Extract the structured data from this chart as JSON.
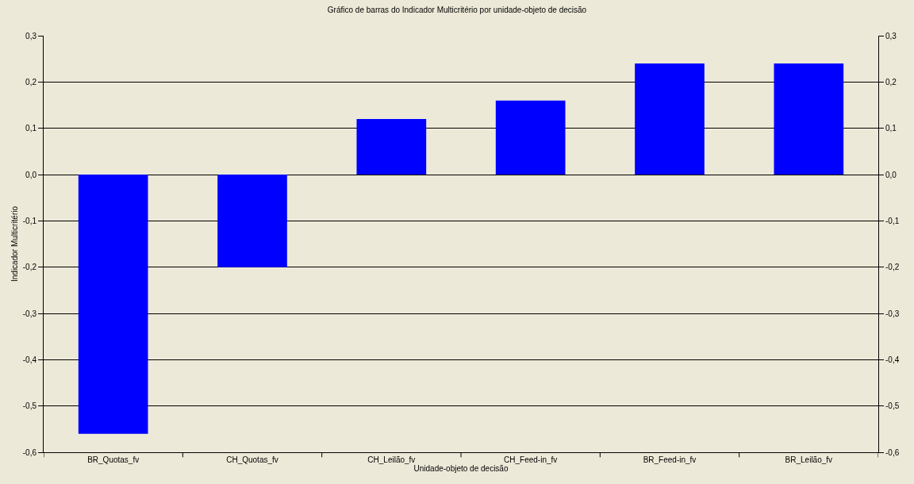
{
  "chart_data": {
    "type": "bar",
    "title": "Gráfico de barras do Indicador Multicritério por unidade-objeto de decisão",
    "xlabel": "Unidade-objeto de decisão",
    "ylabel": "Indicador Multicritério",
    "categories": [
      "BR_Quotas_fv",
      "CH_Quotas_fv",
      "CH_Leilão_fv",
      "CH_Feed-in_fv",
      "BR_Feed-in_fv",
      "BR_Leilão_fv"
    ],
    "values": [
      -0.56,
      -0.2,
      0.12,
      0.16,
      0.24,
      0.24
    ],
    "color": "#0000ff",
    "ylim": [
      -0.6,
      0.3
    ],
    "yticks": [
      {
        "value": -0.6,
        "label": "-0,6"
      },
      {
        "value": -0.5,
        "label": "-0,5"
      },
      {
        "value": -0.4,
        "label": "-0,4"
      },
      {
        "value": -0.3,
        "label": "-0,3"
      },
      {
        "value": -0.2,
        "label": "-0,2"
      },
      {
        "value": -0.1,
        "label": "-0,1"
      },
      {
        "value": 0,
        "label": "0,0"
      },
      {
        "value": 0.1,
        "label": "0,1"
      },
      {
        "value": 0.2,
        "label": "0,2"
      },
      {
        "value": 0.3,
        "label": "0,3"
      }
    ],
    "y2lim": [
      -0.6,
      0.3
    ],
    "y2ticks": [
      {
        "value": -0.6,
        "label": "-0,6"
      },
      {
        "value": -0.5,
        "label": "-0,5"
      },
      {
        "value": -0.4,
        "label": "-0,4"
      },
      {
        "value": -0.3,
        "label": "-0,3"
      },
      {
        "value": -0.2,
        "label": "-0,2"
      },
      {
        "value": -0.1,
        "label": "-0,1"
      },
      {
        "value": 0,
        "label": "0,0"
      },
      {
        "value": 0.1,
        "label": "0,1"
      },
      {
        "value": 0.2,
        "label": "0,2"
      },
      {
        "value": 0.3,
        "label": "0,3"
      }
    ],
    "grid": "y",
    "legend": false
  }
}
